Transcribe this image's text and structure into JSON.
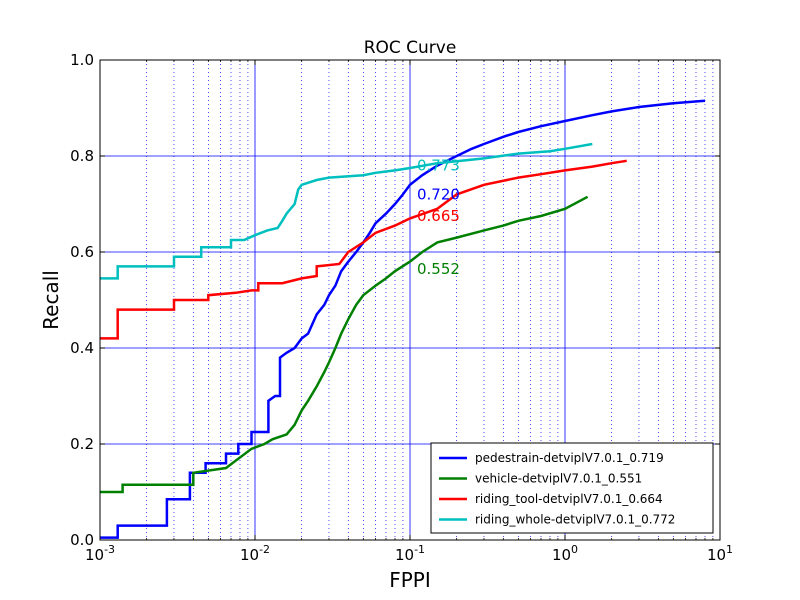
{
  "chart_data": {
    "type": "line",
    "title": "ROC Curve",
    "xlabel": "FPPI",
    "ylabel": "Recall",
    "xscale": "log",
    "xlim": [
      0.001,
      10
    ],
    "ylim": [
      0.0,
      1.0
    ],
    "x_ticks": [
      {
        "base": "10",
        "exp": "-3",
        "value": 0.001
      },
      {
        "base": "10",
        "exp": "-2",
        "value": 0.01
      },
      {
        "base": "10",
        "exp": "-1",
        "value": 0.1
      },
      {
        "base": "10",
        "exp": "0",
        "value": 1
      },
      {
        "base": "10",
        "exp": "1",
        "value": 10
      }
    ],
    "y_ticks": [
      "0.0",
      "0.2",
      "0.4",
      "0.6",
      "0.8",
      "1.0"
    ],
    "grid": true,
    "legend_position": "lower-right",
    "series": [
      {
        "name": "pedestrain-detviplV7.0.1_0.719",
        "color": "#0000ff",
        "annotation": {
          "text": "0.720",
          "x": 0.1,
          "y": 0.72
        },
        "points": [
          [
            0.001,
            0.005
          ],
          [
            0.0013,
            0.005
          ],
          [
            0.0013,
            0.03
          ],
          [
            0.0027,
            0.03
          ],
          [
            0.0027,
            0.085
          ],
          [
            0.0038,
            0.085
          ],
          [
            0.0038,
            0.14
          ],
          [
            0.0048,
            0.14
          ],
          [
            0.0048,
            0.16
          ],
          [
            0.0065,
            0.16
          ],
          [
            0.0065,
            0.18
          ],
          [
            0.0078,
            0.18
          ],
          [
            0.0078,
            0.2
          ],
          [
            0.0095,
            0.2
          ],
          [
            0.0095,
            0.225
          ],
          [
            0.0122,
            0.225
          ],
          [
            0.0122,
            0.29
          ],
          [
            0.0135,
            0.3
          ],
          [
            0.0145,
            0.3
          ],
          [
            0.0145,
            0.38
          ],
          [
            0.016,
            0.39
          ],
          [
            0.018,
            0.4
          ],
          [
            0.02,
            0.42
          ],
          [
            0.022,
            0.43
          ],
          [
            0.025,
            0.47
          ],
          [
            0.028,
            0.49
          ],
          [
            0.03,
            0.51
          ],
          [
            0.033,
            0.53
          ],
          [
            0.036,
            0.56
          ],
          [
            0.04,
            0.58
          ],
          [
            0.045,
            0.6
          ],
          [
            0.05,
            0.62
          ],
          [
            0.055,
            0.64
          ],
          [
            0.06,
            0.66
          ],
          [
            0.07,
            0.68
          ],
          [
            0.08,
            0.7
          ],
          [
            0.09,
            0.72
          ],
          [
            0.1,
            0.74
          ],
          [
            0.12,
            0.76
          ],
          [
            0.15,
            0.78
          ],
          [
            0.2,
            0.8
          ],
          [
            0.25,
            0.815
          ],
          [
            0.3,
            0.825
          ],
          [
            0.4,
            0.84
          ],
          [
            0.5,
            0.85
          ],
          [
            0.7,
            0.862
          ],
          [
            1.0,
            0.873
          ],
          [
            1.5,
            0.885
          ],
          [
            2.0,
            0.893
          ],
          [
            3.0,
            0.902
          ],
          [
            5.0,
            0.91
          ],
          [
            8.0,
            0.915
          ]
        ]
      },
      {
        "name": "vehicle-detviplV7.0.1_0.551",
        "color": "#008000",
        "annotation": {
          "text": "0.552",
          "x": 0.1,
          "y": 0.565
        },
        "points": [
          [
            0.001,
            0.1
          ],
          [
            0.0014,
            0.1
          ],
          [
            0.0014,
            0.115
          ],
          [
            0.004,
            0.115
          ],
          [
            0.004,
            0.14
          ],
          [
            0.0065,
            0.15
          ],
          [
            0.0075,
            0.165
          ],
          [
            0.0095,
            0.19
          ],
          [
            0.0115,
            0.2
          ],
          [
            0.013,
            0.21
          ],
          [
            0.016,
            0.22
          ],
          [
            0.018,
            0.24
          ],
          [
            0.02,
            0.27
          ],
          [
            0.022,
            0.29
          ],
          [
            0.025,
            0.32
          ],
          [
            0.028,
            0.35
          ],
          [
            0.03,
            0.37
          ],
          [
            0.033,
            0.4
          ],
          [
            0.036,
            0.43
          ],
          [
            0.04,
            0.46
          ],
          [
            0.045,
            0.49
          ],
          [
            0.05,
            0.51
          ],
          [
            0.06,
            0.53
          ],
          [
            0.07,
            0.545
          ],
          [
            0.08,
            0.56
          ],
          [
            0.1,
            0.58
          ],
          [
            0.12,
            0.6
          ],
          [
            0.15,
            0.62
          ],
          [
            0.2,
            0.63
          ],
          [
            0.3,
            0.645
          ],
          [
            0.4,
            0.655
          ],
          [
            0.5,
            0.665
          ],
          [
            0.7,
            0.675
          ],
          [
            1.0,
            0.69
          ],
          [
            1.4,
            0.715
          ]
        ]
      },
      {
        "name": "riding_tool-detviplV7.0.1_0.664",
        "color": "#ff0000",
        "annotation": {
          "text": "0.665",
          "x": 0.1,
          "y": 0.675
        },
        "points": [
          [
            0.001,
            0.42
          ],
          [
            0.0013,
            0.42
          ],
          [
            0.0013,
            0.48
          ],
          [
            0.003,
            0.48
          ],
          [
            0.003,
            0.5
          ],
          [
            0.005,
            0.5
          ],
          [
            0.005,
            0.51
          ],
          [
            0.0075,
            0.515
          ],
          [
            0.0095,
            0.52
          ],
          [
            0.0105,
            0.52
          ],
          [
            0.0105,
            0.535
          ],
          [
            0.015,
            0.535
          ],
          [
            0.02,
            0.545
          ],
          [
            0.025,
            0.55
          ],
          [
            0.025,
            0.57
          ],
          [
            0.035,
            0.575
          ],
          [
            0.04,
            0.6
          ],
          [
            0.05,
            0.62
          ],
          [
            0.06,
            0.64
          ],
          [
            0.08,
            0.655
          ],
          [
            0.1,
            0.67
          ],
          [
            0.15,
            0.69
          ],
          [
            0.2,
            0.72
          ],
          [
            0.3,
            0.74
          ],
          [
            0.5,
            0.755
          ],
          [
            0.7,
            0.762
          ],
          [
            1.0,
            0.77
          ],
          [
            1.5,
            0.778
          ],
          [
            2.0,
            0.785
          ],
          [
            2.5,
            0.79
          ]
        ]
      },
      {
        "name": "riding_whole-detviplV7.0.1_0.772",
        "color": "#00bfbf",
        "annotation": {
          "text": "0.773",
          "x": 0.1,
          "y": 0.78
        },
        "points": [
          [
            0.001,
            0.545
          ],
          [
            0.0013,
            0.545
          ],
          [
            0.0013,
            0.57
          ],
          [
            0.003,
            0.57
          ],
          [
            0.003,
            0.59
          ],
          [
            0.0045,
            0.59
          ],
          [
            0.0045,
            0.61
          ],
          [
            0.007,
            0.61
          ],
          [
            0.007,
            0.625
          ],
          [
            0.0085,
            0.625
          ],
          [
            0.01,
            0.635
          ],
          [
            0.012,
            0.645
          ],
          [
            0.014,
            0.65
          ],
          [
            0.015,
            0.665
          ],
          [
            0.016,
            0.68
          ],
          [
            0.018,
            0.7
          ],
          [
            0.019,
            0.73
          ],
          [
            0.02,
            0.74
          ],
          [
            0.025,
            0.75
          ],
          [
            0.03,
            0.755
          ],
          [
            0.05,
            0.76
          ],
          [
            0.06,
            0.765
          ],
          [
            0.08,
            0.77
          ],
          [
            0.1,
            0.775
          ],
          [
            0.15,
            0.785
          ],
          [
            0.3,
            0.795
          ],
          [
            0.5,
            0.805
          ],
          [
            0.8,
            0.81
          ],
          [
            1.0,
            0.815
          ],
          [
            1.5,
            0.825
          ]
        ]
      }
    ]
  }
}
